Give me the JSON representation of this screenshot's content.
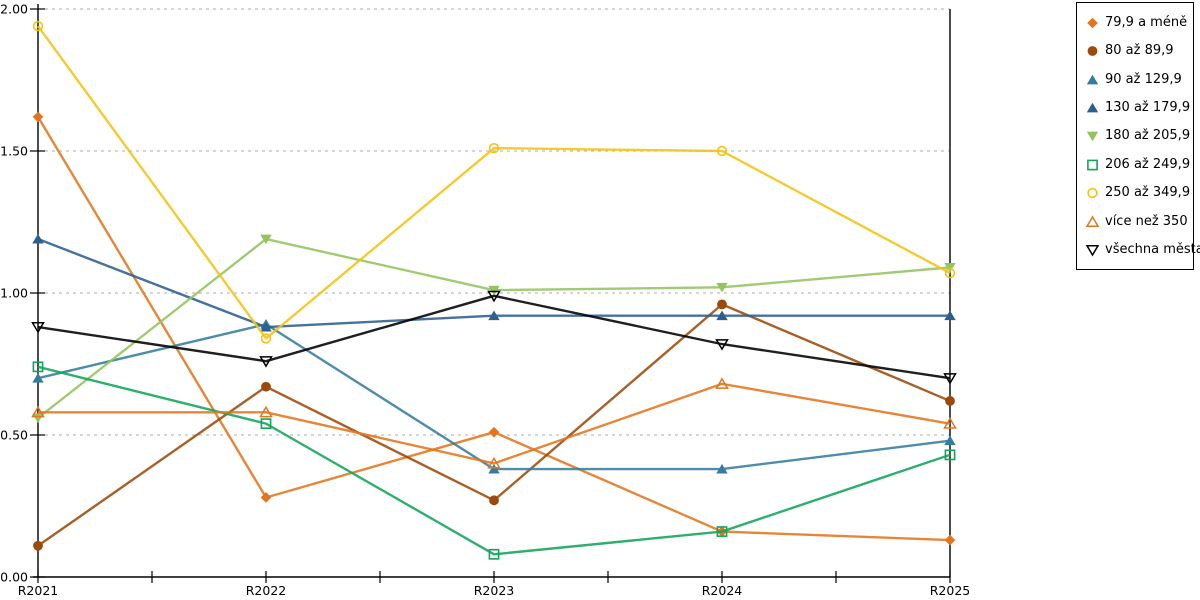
{
  "chart_data": {
    "type": "line",
    "title": "",
    "xlabel": "",
    "ylabel": "",
    "x_categories": [
      "R2021",
      "R2022",
      "R2023",
      "R2024",
      "R2025"
    ],
    "y_ticks": [
      "0.00",
      "0.50",
      "1.00",
      "1.50",
      "2.00"
    ],
    "ylim": [
      0,
      2
    ],
    "grid": "horizontal-dashed",
    "legend_position": "right-boxed",
    "series": [
      {
        "name": "79,9 a méně",
        "marker": "diamond-filled",
        "color": "#E2751D",
        "values": [
          1.62,
          0.28,
          0.51,
          0.16,
          0.13
        ]
      },
      {
        "name": "80 až 89,9",
        "marker": "circle-filled",
        "color": "#9C4A0B",
        "values": [
          0.11,
          0.67,
          0.27,
          0.96,
          0.62
        ]
      },
      {
        "name": "90 až 129,9",
        "marker": "triangle-up-filled",
        "color": "#357D9D",
        "values": [
          0.7,
          0.89,
          0.38,
          0.38,
          0.48
        ]
      },
      {
        "name": "130 až 179,9",
        "marker": "triangle-up-filled",
        "color": "#2E5E8E",
        "values": [
          1.19,
          0.88,
          0.92,
          0.92,
          0.92
        ]
      },
      {
        "name": "180 až 205,9",
        "marker": "triangle-down-filled",
        "color": "#94C45F",
        "values": [
          0.56,
          1.19,
          1.01,
          1.02,
          1.09
        ]
      },
      {
        "name": "206 až 249,9",
        "marker": "square-open",
        "color": "#12A45B",
        "values": [
          0.74,
          0.54,
          0.08,
          0.16,
          0.43
        ]
      },
      {
        "name": "250 až 349,9",
        "marker": "circle-open",
        "color": "#F2C314",
        "values": [
          1.94,
          0.84,
          1.51,
          1.5,
          1.07
        ]
      },
      {
        "name": "více než 350",
        "marker": "triangle-up-open",
        "color": "#E2751D",
        "values": [
          0.58,
          0.58,
          0.4,
          0.68,
          0.54
        ]
      },
      {
        "name": "všechna města",
        "marker": "triangle-down-open",
        "color": "#000000",
        "values": [
          0.88,
          0.76,
          0.99,
          0.82,
          0.7
        ]
      }
    ]
  },
  "colors": {
    "axis": "#000000",
    "gridline": "#ADADAD",
    "tick_label": "#000000",
    "background": "#FFFFFF"
  }
}
